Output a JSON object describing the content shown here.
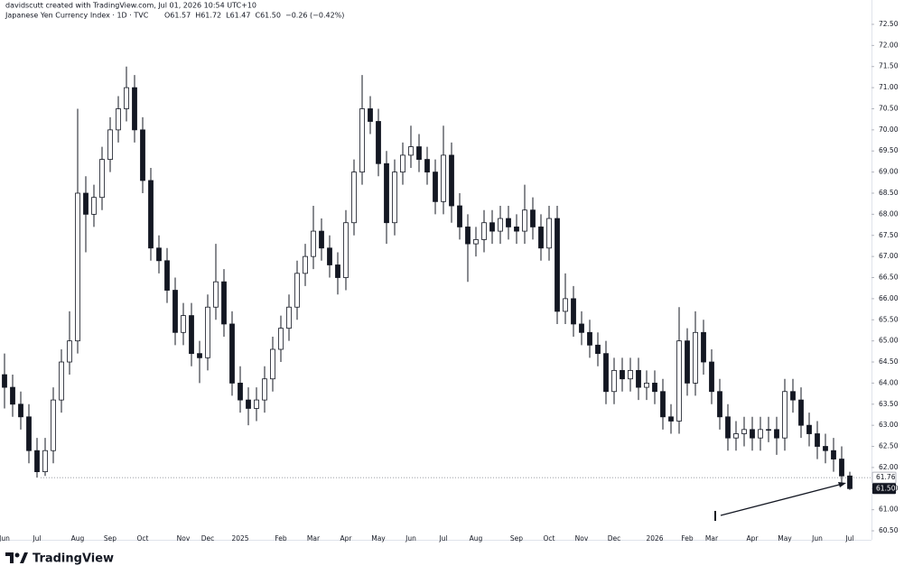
{
  "chart_data": {
    "type": "candlestick",
    "watermark": "davidscutt created with TradingView.com, Jul 01, 2026 10:54 UTC+10",
    "title": "Japanese Yen Currency Index · 1D · TVC",
    "legend_values": [
      "O61.57",
      "H61.72",
      "L61.47",
      "C61.50",
      "−0.26 (−0.42%)"
    ],
    "brand": "TradingView",
    "up_color": "#ffffff",
    "down_color": "#131722",
    "wick_color": "#131722",
    "ylim": [
      60.3,
      73.0
    ],
    "yticks": [
      {
        "value": 60.5,
        "label": "60.50"
      },
      {
        "value": 61,
        "label": "61.00"
      },
      {
        "value": 61.5,
        "label": "61.50"
      },
      {
        "value": 62,
        "label": "62.00"
      },
      {
        "value": 62.5,
        "label": "62.50"
      },
      {
        "value": 63,
        "label": "63.00"
      },
      {
        "value": 63.5,
        "label": "63.50"
      },
      {
        "value": 64,
        "label": "64.00"
      },
      {
        "value": 64.5,
        "label": "64.50"
      },
      {
        "value": 65,
        "label": "65.00"
      },
      {
        "value": 65.5,
        "label": "65.50"
      },
      {
        "value": 66,
        "label": "66.00"
      },
      {
        "value": 66.5,
        "label": "66.50"
      },
      {
        "value": 67,
        "label": "67.00"
      },
      {
        "value": 67.5,
        "label": "67.50"
      },
      {
        "value": 68,
        "label": "68.00"
      },
      {
        "value": 68.5,
        "label": "68.50"
      },
      {
        "value": 69,
        "label": "69.00"
      },
      {
        "value": 69.5,
        "label": "69.50"
      },
      {
        "value": 70,
        "label": "70.00"
      },
      {
        "value": 70.5,
        "label": "70.50"
      },
      {
        "value": 71,
        "label": "71.00"
      },
      {
        "value": 71.5,
        "label": "71.50"
      },
      {
        "value": 72,
        "label": "72.00"
      },
      {
        "value": 72.5,
        "label": "72.50"
      }
    ],
    "reference_line": 61.76,
    "last_price": {
      "value": 61.5,
      "label": "61.50"
    },
    "categories": [
      "Jun",
      null,
      null,
      null,
      "Jul",
      null,
      null,
      null,
      null,
      "Aug",
      null,
      null,
      null,
      "Sep",
      null,
      null,
      null,
      "Oct",
      null,
      null,
      null,
      null,
      "Nov",
      null,
      null,
      "Dec",
      null,
      null,
      null,
      "2025",
      null,
      null,
      null,
      null,
      "Feb",
      null,
      null,
      null,
      "Mar",
      null,
      null,
      null,
      "Apr",
      null,
      null,
      null,
      "May",
      null,
      null,
      null,
      "Jun",
      null,
      null,
      null,
      "Jul",
      null,
      null,
      null,
      "Aug",
      null,
      null,
      null,
      null,
      "Sep",
      null,
      null,
      null,
      "Oct",
      null,
      null,
      null,
      "Nov",
      null,
      null,
      null,
      "Dec",
      null,
      null,
      null,
      null,
      "2026",
      null,
      null,
      null,
      "Feb",
      null,
      null,
      "Mar",
      null,
      null,
      null,
      null,
      "Apr",
      null,
      null,
      null,
      "May",
      null,
      null,
      null,
      "Jun",
      null,
      null,
      null,
      "Jul"
    ],
    "open": [
      64.2,
      63.9,
      63.5,
      63.2,
      62.4,
      61.9,
      62.4,
      63.6,
      64.5,
      65.0,
      68.5,
      68.0,
      68.4,
      69.3,
      70.0,
      70.5,
      71.0,
      70.0,
      68.8,
      67.2,
      66.9,
      66.2,
      65.2,
      65.6,
      64.7,
      64.6,
      65.8,
      66.4,
      65.4,
      64.0,
      63.6,
      63.4,
      63.6,
      64.1,
      64.8,
      65.3,
      65.8,
      66.6,
      67.0,
      67.6,
      67.2,
      66.8,
      66.5,
      67.8,
      69.0,
      70.5,
      70.2,
      69.2,
      67.8,
      69.0,
      69.4,
      69.6,
      69.3,
      69.0,
      68.3,
      69.4,
      68.2,
      67.7,
      67.3,
      67.4,
      67.8,
      67.6,
      67.9,
      67.7,
      67.6,
      68.1,
      67.7,
      67.2,
      67.9,
      65.7,
      66.0,
      65.4,
      65.2,
      64.9,
      64.7,
      63.8,
      64.3,
      64.1,
      64.3,
      63.9,
      64.0,
      63.8,
      63.2,
      63.1,
      65.0,
      64.0,
      65.2,
      64.5,
      63.8,
      63.2,
      62.7,
      62.8,
      62.9,
      62.7,
      62.9,
      62.9,
      62.7,
      63.8,
      63.6,
      63.0,
      62.8,
      62.5,
      62.4,
      62.2,
      61.8
    ],
    "high": [
      64.7,
      64.2,
      63.8,
      63.5,
      62.7,
      62.7,
      63.9,
      64.8,
      65.7,
      70.5,
      68.9,
      68.7,
      69.6,
      70.3,
      70.8,
      71.5,
      71.3,
      70.3,
      69.1,
      67.5,
      67.2,
      66.5,
      65.9,
      65.9,
      65.0,
      66.1,
      67.3,
      66.7,
      65.7,
      64.4,
      63.9,
      63.9,
      64.4,
      65.1,
      65.6,
      66.1,
      66.9,
      67.3,
      68.2,
      67.9,
      67.5,
      67.1,
      68.1,
      69.3,
      71.3,
      70.8,
      70.5,
      69.5,
      69.3,
      69.7,
      70.1,
      69.9,
      69.6,
      69.3,
      70.1,
      69.7,
      68.5,
      68.0,
      67.7,
      68.1,
      68.1,
      68.2,
      68.2,
      68.0,
      68.7,
      68.4,
      68.0,
      68.2,
      68.2,
      66.6,
      66.3,
      65.7,
      65.5,
      65.2,
      65.0,
      64.6,
      64.6,
      64.6,
      64.6,
      64.3,
      64.3,
      64.1,
      63.5,
      65.8,
      65.3,
      65.7,
      65.5,
      64.8,
      64.1,
      63.5,
      63.1,
      63.2,
      63.2,
      63.2,
      63.2,
      63.2,
      64.1,
      64.1,
      63.9,
      63.3,
      63.1,
      62.8,
      62.7,
      62.5,
      61.9
    ],
    "low": [
      63.4,
      63.2,
      62.9,
      62.1,
      61.76,
      61.8,
      62.1,
      63.3,
      64.2,
      64.7,
      67.1,
      67.7,
      68.1,
      69.0,
      69.7,
      70.2,
      69.7,
      68.5,
      66.9,
      66.6,
      65.9,
      64.9,
      64.9,
      64.4,
      64.0,
      64.3,
      65.5,
      65.1,
      63.7,
      63.3,
      63.0,
      63.1,
      63.3,
      63.8,
      64.5,
      65.0,
      65.5,
      66.3,
      66.7,
      66.9,
      66.5,
      66.1,
      66.2,
      67.5,
      68.7,
      69.9,
      68.9,
      67.3,
      67.5,
      68.7,
      69.1,
      69.0,
      68.7,
      68.0,
      68.0,
      67.8,
      67.4,
      66.4,
      67.0,
      67.1,
      67.3,
      67.3,
      67.4,
      67.3,
      67.3,
      67.4,
      66.9,
      66.9,
      65.4,
      65.4,
      65.1,
      64.9,
      64.6,
      64.4,
      63.5,
      63.5,
      63.8,
      63.8,
      63.6,
      63.6,
      63.5,
      62.9,
      62.8,
      62.8,
      63.7,
      63.7,
      64.2,
      63.5,
      62.9,
      62.4,
      62.4,
      62.5,
      62.4,
      62.4,
      62.6,
      62.3,
      62.4,
      63.3,
      62.7,
      62.5,
      62.2,
      62.1,
      61.9,
      61.6,
      61.47
    ],
    "close": [
      63.9,
      63.5,
      63.2,
      62.4,
      61.9,
      62.4,
      63.6,
      64.5,
      65.0,
      68.5,
      68.0,
      68.4,
      69.3,
      70.0,
      70.5,
      71.0,
      70.0,
      68.8,
      67.2,
      66.9,
      66.2,
      65.2,
      65.6,
      64.7,
      64.6,
      65.8,
      66.4,
      65.4,
      64.0,
      63.6,
      63.4,
      63.6,
      64.1,
      64.8,
      65.3,
      65.8,
      66.6,
      67.0,
      67.6,
      67.2,
      66.8,
      66.5,
      67.8,
      69.0,
      70.5,
      70.2,
      69.2,
      67.8,
      69.0,
      69.4,
      69.6,
      69.3,
      69.0,
      68.3,
      69.4,
      68.2,
      67.7,
      67.3,
      67.4,
      67.8,
      67.6,
      67.9,
      67.7,
      67.6,
      68.1,
      67.7,
      67.2,
      67.9,
      65.7,
      66.0,
      65.4,
      65.2,
      64.9,
      64.7,
      63.8,
      64.3,
      64.1,
      64.3,
      63.9,
      64.0,
      63.8,
      63.2,
      63.1,
      65.0,
      64.0,
      65.2,
      64.5,
      63.8,
      63.2,
      62.7,
      62.8,
      62.9,
      62.7,
      62.9,
      62.9,
      62.7,
      63.8,
      63.6,
      63.0,
      62.8,
      62.5,
      62.4,
      62.2,
      61.8,
      61.5
    ]
  }
}
